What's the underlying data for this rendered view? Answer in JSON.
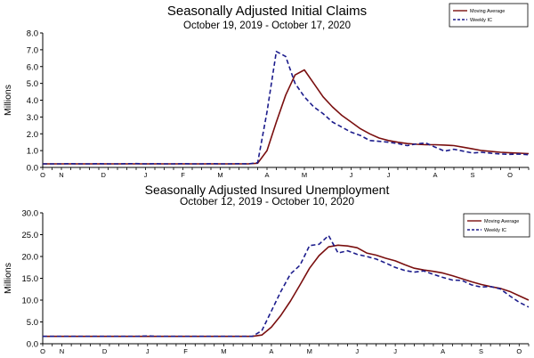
{
  "chart_data": [
    {
      "type": "line",
      "title": "Seasonally Adjusted Initial Claims",
      "subtitle": "October 19, 2019 - October 17, 2020",
      "ylabel": "Millions",
      "ylim": [
        0,
        8
      ],
      "yticks": [
        "0.0",
        "1.0",
        "2.0",
        "3.0",
        "4.0",
        "5.0",
        "6.0",
        "7.0",
        "8.0"
      ],
      "months": [
        "O",
        "N",
        "D",
        "J",
        "F",
        "M",
        "A",
        "M",
        "J",
        "J",
        "A",
        "S",
        "O"
      ],
      "month_x": [
        0,
        2,
        6.5,
        11,
        15,
        19,
        24,
        28,
        33,
        37,
        42,
        46,
        50
      ],
      "grid": false,
      "legend": "top-right",
      "series": [
        {
          "name": "Moving Average",
          "color": "#7a0f0f",
          "dash": "solid",
          "values": [
            0.21,
            0.21,
            0.21,
            0.21,
            0.21,
            0.21,
            0.21,
            0.21,
            0.21,
            0.21,
            0.21,
            0.21,
            0.21,
            0.21,
            0.21,
            0.21,
            0.21,
            0.21,
            0.21,
            0.21,
            0.21,
            0.21,
            0.21,
            0.25,
            1.0,
            2.7,
            4.3,
            5.5,
            5.8,
            5.0,
            4.2,
            3.6,
            3.1,
            2.7,
            2.3,
            2.0,
            1.75,
            1.6,
            1.5,
            1.42,
            1.38,
            1.35,
            1.35,
            1.33,
            1.3,
            1.2,
            1.1,
            1.0,
            0.95,
            0.9,
            0.87,
            0.85,
            0.82
          ]
        },
        {
          "name": "Weekly IC",
          "color": "#1c1c8c",
          "dash": "dashed",
          "values": [
            0.21,
            0.21,
            0.21,
            0.22,
            0.21,
            0.21,
            0.22,
            0.21,
            0.21,
            0.22,
            0.23,
            0.21,
            0.22,
            0.21,
            0.21,
            0.22,
            0.21,
            0.21,
            0.22,
            0.21,
            0.21,
            0.22,
            0.21,
            0.28,
            3.3,
            6.9,
            6.6,
            5.0,
            4.2,
            3.6,
            3.2,
            2.7,
            2.4,
            2.1,
            1.9,
            1.6,
            1.55,
            1.5,
            1.42,
            1.3,
            1.4,
            1.45,
            1.2,
            0.97,
            1.08,
            0.97,
            0.86,
            0.9,
            0.84,
            0.8,
            0.78,
            0.8,
            0.75
          ]
        }
      ]
    },
    {
      "type": "line",
      "title": "Seasonally Adjusted Insured Unemployment",
      "subtitle": "October 12, 2019 - October 10, 2020",
      "ylabel": "Millions",
      "ylim": [
        0,
        30
      ],
      "yticks": [
        "0.0",
        "5.0",
        "10.0",
        "15.0",
        "20.0",
        "25.0",
        "30.0"
      ],
      "months": [
        "O",
        "N",
        "D",
        "J",
        "F",
        "M",
        "A",
        "M",
        "J",
        "J",
        "A",
        "S",
        "O"
      ],
      "month_x": [
        0,
        2,
        6.5,
        11,
        15,
        19,
        24,
        28,
        33,
        37,
        42,
        46,
        50
      ],
      "grid": false,
      "legend": "top-right",
      "series": [
        {
          "name": "Moving Average",
          "color": "#7a0f0f",
          "dash": "solid",
          "values": [
            1.7,
            1.7,
            1.7,
            1.7,
            1.7,
            1.7,
            1.7,
            1.7,
            1.7,
            1.7,
            1.7,
            1.7,
            1.7,
            1.7,
            1.7,
            1.7,
            1.7,
            1.7,
            1.7,
            1.7,
            1.7,
            1.7,
            1.7,
            2.0,
            3.8,
            6.5,
            9.8,
            13.5,
            17.3,
            20.2,
            22.2,
            22.6,
            22.4,
            22.0,
            20.8,
            20.3,
            19.6,
            19.0,
            18.1,
            17.3,
            16.9,
            16.6,
            16.2,
            15.6,
            14.9,
            14.2,
            13.6,
            13.1,
            12.7,
            12.0,
            11.0,
            10.0
          ]
        },
        {
          "name": "Weekly IC",
          "color": "#1c1c8c",
          "dash": "dashed",
          "values": [
            1.7,
            1.7,
            1.7,
            1.7,
            1.7,
            1.7,
            1.7,
            1.7,
            1.7,
            1.7,
            1.7,
            1.8,
            1.7,
            1.7,
            1.7,
            1.7,
            1.7,
            1.7,
            1.7,
            1.7,
            1.7,
            1.7,
            1.7,
            3.0,
            7.5,
            12.0,
            16.0,
            18.0,
            22.5,
            22.8,
            24.8,
            20.8,
            21.3,
            20.5,
            20.0,
            19.4,
            18.5,
            17.5,
            16.8,
            16.4,
            16.7,
            15.9,
            15.2,
            14.6,
            14.5,
            13.5,
            13.0,
            13.1,
            12.6,
            11.0,
            9.5,
            8.4
          ]
        }
      ]
    }
  ]
}
